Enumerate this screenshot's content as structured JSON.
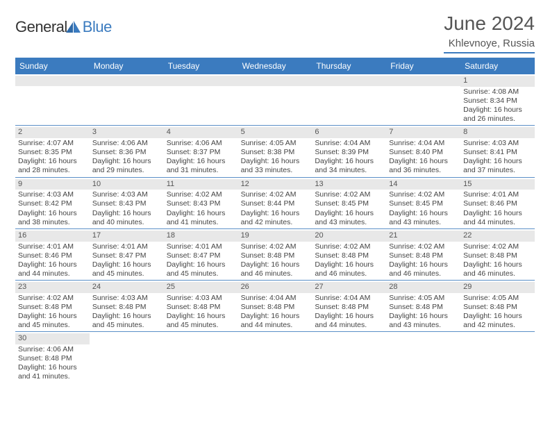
{
  "brand": {
    "part1": "General",
    "part2": "Blue"
  },
  "title": "June 2024",
  "location": "Khlevnoye, Russia",
  "colors": {
    "header_bg": "#3b7bbf",
    "row_divider": "#5a8fc7",
    "daynum_bg": "#e8e8e8",
    "text": "#444444",
    "title_text": "#555555"
  },
  "day_headers": [
    "Sunday",
    "Monday",
    "Tuesday",
    "Wednesday",
    "Thursday",
    "Friday",
    "Saturday"
  ],
  "weeks": [
    [
      null,
      null,
      null,
      null,
      null,
      null,
      {
        "n": "1",
        "sr": "Sunrise: 4:08 AM",
        "ss": "Sunset: 8:34 PM",
        "d1": "Daylight: 16 hours",
        "d2": "and 26 minutes."
      }
    ],
    [
      {
        "n": "2",
        "sr": "Sunrise: 4:07 AM",
        "ss": "Sunset: 8:35 PM",
        "d1": "Daylight: 16 hours",
        "d2": "and 28 minutes."
      },
      {
        "n": "3",
        "sr": "Sunrise: 4:06 AM",
        "ss": "Sunset: 8:36 PM",
        "d1": "Daylight: 16 hours",
        "d2": "and 29 minutes."
      },
      {
        "n": "4",
        "sr": "Sunrise: 4:06 AM",
        "ss": "Sunset: 8:37 PM",
        "d1": "Daylight: 16 hours",
        "d2": "and 31 minutes."
      },
      {
        "n": "5",
        "sr": "Sunrise: 4:05 AM",
        "ss": "Sunset: 8:38 PM",
        "d1": "Daylight: 16 hours",
        "d2": "and 33 minutes."
      },
      {
        "n": "6",
        "sr": "Sunrise: 4:04 AM",
        "ss": "Sunset: 8:39 PM",
        "d1": "Daylight: 16 hours",
        "d2": "and 34 minutes."
      },
      {
        "n": "7",
        "sr": "Sunrise: 4:04 AM",
        "ss": "Sunset: 8:40 PM",
        "d1": "Daylight: 16 hours",
        "d2": "and 36 minutes."
      },
      {
        "n": "8",
        "sr": "Sunrise: 4:03 AM",
        "ss": "Sunset: 8:41 PM",
        "d1": "Daylight: 16 hours",
        "d2": "and 37 minutes."
      }
    ],
    [
      {
        "n": "9",
        "sr": "Sunrise: 4:03 AM",
        "ss": "Sunset: 8:42 PM",
        "d1": "Daylight: 16 hours",
        "d2": "and 38 minutes."
      },
      {
        "n": "10",
        "sr": "Sunrise: 4:03 AM",
        "ss": "Sunset: 8:43 PM",
        "d1": "Daylight: 16 hours",
        "d2": "and 40 minutes."
      },
      {
        "n": "11",
        "sr": "Sunrise: 4:02 AM",
        "ss": "Sunset: 8:43 PM",
        "d1": "Daylight: 16 hours",
        "d2": "and 41 minutes."
      },
      {
        "n": "12",
        "sr": "Sunrise: 4:02 AM",
        "ss": "Sunset: 8:44 PM",
        "d1": "Daylight: 16 hours",
        "d2": "and 42 minutes."
      },
      {
        "n": "13",
        "sr": "Sunrise: 4:02 AM",
        "ss": "Sunset: 8:45 PM",
        "d1": "Daylight: 16 hours",
        "d2": "and 43 minutes."
      },
      {
        "n": "14",
        "sr": "Sunrise: 4:02 AM",
        "ss": "Sunset: 8:45 PM",
        "d1": "Daylight: 16 hours",
        "d2": "and 43 minutes."
      },
      {
        "n": "15",
        "sr": "Sunrise: 4:01 AM",
        "ss": "Sunset: 8:46 PM",
        "d1": "Daylight: 16 hours",
        "d2": "and 44 minutes."
      }
    ],
    [
      {
        "n": "16",
        "sr": "Sunrise: 4:01 AM",
        "ss": "Sunset: 8:46 PM",
        "d1": "Daylight: 16 hours",
        "d2": "and 44 minutes."
      },
      {
        "n": "17",
        "sr": "Sunrise: 4:01 AM",
        "ss": "Sunset: 8:47 PM",
        "d1": "Daylight: 16 hours",
        "d2": "and 45 minutes."
      },
      {
        "n": "18",
        "sr": "Sunrise: 4:01 AM",
        "ss": "Sunset: 8:47 PM",
        "d1": "Daylight: 16 hours",
        "d2": "and 45 minutes."
      },
      {
        "n": "19",
        "sr": "Sunrise: 4:02 AM",
        "ss": "Sunset: 8:48 PM",
        "d1": "Daylight: 16 hours",
        "d2": "and 46 minutes."
      },
      {
        "n": "20",
        "sr": "Sunrise: 4:02 AM",
        "ss": "Sunset: 8:48 PM",
        "d1": "Daylight: 16 hours",
        "d2": "and 46 minutes."
      },
      {
        "n": "21",
        "sr": "Sunrise: 4:02 AM",
        "ss": "Sunset: 8:48 PM",
        "d1": "Daylight: 16 hours",
        "d2": "and 46 minutes."
      },
      {
        "n": "22",
        "sr": "Sunrise: 4:02 AM",
        "ss": "Sunset: 8:48 PM",
        "d1": "Daylight: 16 hours",
        "d2": "and 46 minutes."
      }
    ],
    [
      {
        "n": "23",
        "sr": "Sunrise: 4:02 AM",
        "ss": "Sunset: 8:48 PM",
        "d1": "Daylight: 16 hours",
        "d2": "and 45 minutes."
      },
      {
        "n": "24",
        "sr": "Sunrise: 4:03 AM",
        "ss": "Sunset: 8:48 PM",
        "d1": "Daylight: 16 hours",
        "d2": "and 45 minutes."
      },
      {
        "n": "25",
        "sr": "Sunrise: 4:03 AM",
        "ss": "Sunset: 8:48 PM",
        "d1": "Daylight: 16 hours",
        "d2": "and 45 minutes."
      },
      {
        "n": "26",
        "sr": "Sunrise: 4:04 AM",
        "ss": "Sunset: 8:48 PM",
        "d1": "Daylight: 16 hours",
        "d2": "and 44 minutes."
      },
      {
        "n": "27",
        "sr": "Sunrise: 4:04 AM",
        "ss": "Sunset: 8:48 PM",
        "d1": "Daylight: 16 hours",
        "d2": "and 44 minutes."
      },
      {
        "n": "28",
        "sr": "Sunrise: 4:05 AM",
        "ss": "Sunset: 8:48 PM",
        "d1": "Daylight: 16 hours",
        "d2": "and 43 minutes."
      },
      {
        "n": "29",
        "sr": "Sunrise: 4:05 AM",
        "ss": "Sunset: 8:48 PM",
        "d1": "Daylight: 16 hours",
        "d2": "and 42 minutes."
      }
    ],
    [
      {
        "n": "30",
        "sr": "Sunrise: 4:06 AM",
        "ss": "Sunset: 8:48 PM",
        "d1": "Daylight: 16 hours",
        "d2": "and 41 minutes."
      },
      null,
      null,
      null,
      null,
      null,
      null
    ]
  ]
}
